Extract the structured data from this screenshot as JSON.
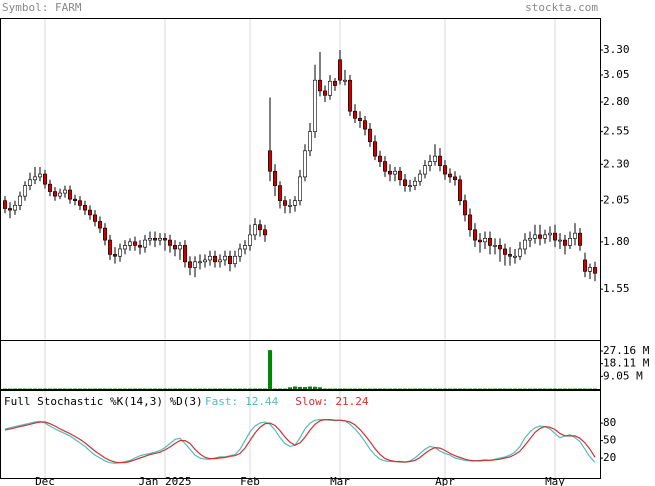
{
  "header": {
    "symbol": "Symbol: FARM",
    "source": "stockta.com"
  },
  "chart_data": [
    {
      "type": "candlestick",
      "log": true,
      "grid": true,
      "up_color": "#ffffff",
      "down_color": "#cc0000",
      "xlim": [
        -1,
        119
      ],
      "xticks": [
        {
          "value": 8,
          "label": "Dec"
        },
        {
          "value": 32,
          "label": "Jan 2025"
        },
        {
          "value": 49,
          "label": "Feb"
        },
        {
          "value": 67,
          "label": "Mar"
        },
        {
          "value": 88,
          "label": "Apr"
        },
        {
          "value": 110,
          "label": "May"
        }
      ],
      "ylim": [
        1.32,
        3.64
      ],
      "yticks": [
        {
          "value": 3.3,
          "label": "3.30"
        },
        3.05,
        {
          "value": 2.8,
          "label": "2.80"
        },
        2.55,
        {
          "value": 2.3,
          "label": "2.30"
        },
        2.05,
        {
          "value": 1.8,
          "label": "1.80"
        },
        1.55
      ],
      "open": [
        2.05,
        2.0,
        1.99,
        2.02,
        2.08,
        2.15,
        2.19,
        2.21,
        2.23,
        2.16,
        2.11,
        2.08,
        2.1,
        2.12,
        2.06,
        2.05,
        2.02,
        1.99,
        1.96,
        1.92,
        1.88,
        1.81,
        1.73,
        1.72,
        1.76,
        1.78,
        1.8,
        1.78,
        1.77,
        1.81,
        1.82,
        1.81,
        1.82,
        1.81,
        1.78,
        1.76,
        1.78,
        1.69,
        1.66,
        1.69,
        1.69,
        1.7,
        1.72,
        1.69,
        1.7,
        1.72,
        1.68,
        1.72,
        1.76,
        1.78,
        1.84,
        1.9,
        1.87,
        2.4,
        2.25,
        2.15,
        2.05,
        2.02,
        2.02,
        2.05,
        2.21,
        2.4,
        2.55,
        3.0,
        2.9,
        2.86,
        2.99,
        3.2,
        3.0,
        3.0,
        2.72,
        2.66,
        2.64,
        2.57,
        2.47,
        2.36,
        2.32,
        2.25,
        2.23,
        2.25,
        2.19,
        2.15,
        2.15,
        2.18,
        2.23,
        2.29,
        2.32,
        2.36,
        2.29,
        2.23,
        2.21,
        2.19,
        2.05,
        1.96,
        1.87,
        1.81,
        1.8,
        1.82,
        1.78,
        1.78,
        1.76,
        1.73,
        1.72,
        1.72,
        1.76,
        1.81,
        1.82,
        1.84,
        1.82,
        1.84,
        1.85,
        1.81,
        1.81,
        1.78,
        1.82,
        1.85,
        1.7,
        1.64,
        1.66
      ],
      "high": [
        2.08,
        2.04,
        2.05,
        2.11,
        2.18,
        2.24,
        2.28,
        2.28,
        2.26,
        2.19,
        2.14,
        2.13,
        2.15,
        2.15,
        2.09,
        2.08,
        2.05,
        2.02,
        1.99,
        1.95,
        1.91,
        1.84,
        1.77,
        1.79,
        1.81,
        1.82,
        1.83,
        1.81,
        1.84,
        1.86,
        1.86,
        1.85,
        1.85,
        1.84,
        1.81,
        1.8,
        1.81,
        1.72,
        1.72,
        1.73,
        1.73,
        1.75,
        1.75,
        1.73,
        1.75,
        1.75,
        1.75,
        1.79,
        1.81,
        1.9,
        1.94,
        1.93,
        1.9,
        2.84,
        2.3,
        2.18,
        2.08,
        2.06,
        2.08,
        2.26,
        2.45,
        2.62,
        3.15,
        3.28,
        2.95,
        3.05,
        3.02,
        3.3,
        3.1,
        3.05,
        2.78,
        2.72,
        2.68,
        2.62,
        2.52,
        2.4,
        2.36,
        2.3,
        2.28,
        2.28,
        2.23,
        2.19,
        2.21,
        2.26,
        2.33,
        2.37,
        2.45,
        2.42,
        2.33,
        2.27,
        2.25,
        2.22,
        2.09,
        2.0,
        1.91,
        1.85,
        1.86,
        1.86,
        1.82,
        1.82,
        1.79,
        1.77,
        1.76,
        1.8,
        1.85,
        1.86,
        1.9,
        1.9,
        1.87,
        1.89,
        1.9,
        1.85,
        1.84,
        1.86,
        1.91,
        1.88,
        1.74,
        1.68,
        1.69
      ],
      "low": [
        1.97,
        1.94,
        1.96,
        1.99,
        2.05,
        2.12,
        2.16,
        2.18,
        2.13,
        2.08,
        2.05,
        2.06,
        2.07,
        2.03,
        2.02,
        1.99,
        1.96,
        1.93,
        1.89,
        1.85,
        1.78,
        1.7,
        1.68,
        1.69,
        1.73,
        1.75,
        1.75,
        1.73,
        1.74,
        1.78,
        1.77,
        1.78,
        1.75,
        1.74,
        1.72,
        1.7,
        1.66,
        1.62,
        1.61,
        1.65,
        1.66,
        1.67,
        1.66,
        1.66,
        1.67,
        1.64,
        1.66,
        1.69,
        1.73,
        1.75,
        1.81,
        1.83,
        1.8,
        2.18,
        2.08,
        2.0,
        1.97,
        1.97,
        1.98,
        2.02,
        2.18,
        2.36,
        2.5,
        2.85,
        2.8,
        2.82,
        2.9,
        2.96,
        2.95,
        2.68,
        2.62,
        2.58,
        2.52,
        2.43,
        2.33,
        2.28,
        2.21,
        2.18,
        2.18,
        2.15,
        2.11,
        2.11,
        2.12,
        2.15,
        2.2,
        2.25,
        2.29,
        2.25,
        2.19,
        2.17,
        2.15,
        2.02,
        1.92,
        1.83,
        1.77,
        1.74,
        1.76,
        1.73,
        1.73,
        1.69,
        1.67,
        1.67,
        1.68,
        1.7,
        1.73,
        1.77,
        1.79,
        1.78,
        1.79,
        1.8,
        1.77,
        1.76,
        1.73,
        1.76,
        1.78,
        1.75,
        1.61,
        1.6,
        1.59
      ],
      "close": [
        2.0,
        1.99,
        2.02,
        2.08,
        2.15,
        2.19,
        2.21,
        2.23,
        2.16,
        2.11,
        2.08,
        2.1,
        2.12,
        2.06,
        2.05,
        2.02,
        1.99,
        1.96,
        1.92,
        1.88,
        1.81,
        1.73,
        1.72,
        1.76,
        1.78,
        1.8,
        1.78,
        1.77,
        1.81,
        1.82,
        1.81,
        1.82,
        1.81,
        1.78,
        1.76,
        1.78,
        1.69,
        1.66,
        1.69,
        1.69,
        1.7,
        1.72,
        1.69,
        1.7,
        1.72,
        1.68,
        1.72,
        1.76,
        1.78,
        1.84,
        1.9,
        1.87,
        1.84,
        2.25,
        2.15,
        2.05,
        2.02,
        2.02,
        2.05,
        2.21,
        2.4,
        2.55,
        3.0,
        2.9,
        2.86,
        2.99,
        2.95,
        3.0,
        3.0,
        2.72,
        2.66,
        2.64,
        2.57,
        2.47,
        2.36,
        2.32,
        2.25,
        2.23,
        2.25,
        2.19,
        2.15,
        2.15,
        2.18,
        2.23,
        2.29,
        2.32,
        2.36,
        2.29,
        2.23,
        2.21,
        2.19,
        2.05,
        1.96,
        1.87,
        1.81,
        1.8,
        1.82,
        1.78,
        1.78,
        1.76,
        1.73,
        1.72,
        1.72,
        1.76,
        1.81,
        1.82,
        1.84,
        1.82,
        1.84,
        1.85,
        1.81,
        1.81,
        1.78,
        1.82,
        1.85,
        1.78,
        1.64,
        1.66,
        1.63
      ]
    },
    {
      "type": "bar",
      "color": "#008800",
      "ylim": [
        0,
        34.3
      ],
      "yticks": [
        {
          "value": 27.16,
          "label": "27.16 M"
        },
        {
          "value": 18.11,
          "label": "18.11 M"
        },
        {
          "value": 9.05,
          "label": "9.05 M"
        }
      ],
      "values": [
        0.3,
        0.3,
        0.3,
        0.3,
        0.3,
        0.3,
        0.3,
        0.3,
        0.3,
        0.3,
        0.3,
        0.3,
        0.3,
        0.3,
        0.3,
        0.3,
        0.3,
        0.3,
        0.3,
        0.3,
        0.3,
        0.3,
        0.3,
        0.3,
        0.3,
        0.3,
        0.3,
        0.3,
        0.3,
        0.3,
        0.3,
        0.3,
        0.3,
        0.3,
        0.3,
        0.3,
        0.3,
        0.3,
        0.3,
        0.3,
        0.3,
        0.3,
        0.3,
        0.3,
        0.3,
        0.3,
        0.3,
        0.3,
        0.3,
        0.3,
        0.3,
        0.3,
        0.3,
        27.8,
        0.3,
        0.3,
        0.3,
        1.2,
        1.8,
        1.5,
        1.4,
        1.8,
        1.6,
        1.2,
        0.3,
        0.3,
        0.3,
        0.3,
        0.3,
        0.3,
        0.3,
        0.3,
        0.3,
        0.3,
        0.3,
        0.3,
        0.3,
        0.3,
        0.3,
        0.3,
        0.3,
        0.3,
        0.3,
        0.3,
        0.3,
        0.3,
        0.3,
        0.3,
        0.3,
        0.3,
        0.3,
        0.3,
        0.3,
        0.3,
        0.3,
        0.3,
        0.3,
        0.3,
        0.3,
        0.3,
        0.3,
        0.3,
        0.3,
        0.3,
        0.3,
        0.3,
        0.3,
        0.3,
        0.3,
        0.3,
        0.3,
        0.3,
        0.3,
        0.3,
        0.3,
        0.3,
        0.3,
        0.3,
        0.3
      ]
    },
    {
      "type": "line",
      "title": "Full Stochastic %K(14,3) %D(3)",
      "ylim": [
        -14.3,
        135.2
      ],
      "yticks": [
        80,
        50,
        20
      ],
      "series": [
        {
          "name": "Fast:",
          "color": "#55bbbb",
          "values": [
            70,
            72,
            74,
            76,
            78,
            80,
            82,
            83,
            80,
            75,
            70,
            66,
            62,
            58,
            52,
            46,
            40,
            32,
            25,
            20,
            15,
            12,
            11,
            12,
            14,
            16,
            20,
            24,
            26,
            28,
            30,
            33,
            38,
            45,
            52,
            54,
            45,
            35,
            25,
            20,
            18,
            18,
            20,
            22,
            22,
            24,
            26,
            35,
            50,
            65,
            75,
            80,
            82,
            78,
            68,
            55,
            45,
            40,
            42,
            55,
            70,
            80,
            85,
            86,
            86,
            85,
            84,
            85,
            84,
            78,
            70,
            60,
            48,
            35,
            25,
            18,
            15,
            14,
            14,
            13,
            13,
            15,
            20,
            28,
            35,
            40,
            38,
            32,
            28,
            25,
            20,
            18,
            16,
            15,
            15,
            16,
            17,
            16,
            18,
            20,
            22,
            25,
            30,
            40,
            55,
            65,
            72,
            75,
            74,
            70,
            62,
            55,
            58,
            60,
            55,
            48,
            35,
            22,
            12.44
          ]
        },
        {
          "name": "Slow:",
          "color": "#cc3333",
          "values": [
            68,
            70,
            72,
            74,
            76,
            78,
            80,
            82,
            82,
            79,
            75,
            70,
            66,
            62,
            57,
            52,
            46,
            39,
            32,
            26,
            20,
            16,
            13,
            12,
            12,
            14,
            17,
            20,
            23,
            26,
            28,
            30,
            34,
            39,
            45,
            50,
            50,
            45,
            35,
            27,
            21,
            19,
            19,
            20,
            21,
            23,
            24,
            28,
            37,
            50,
            63,
            73,
            79,
            80,
            76,
            67,
            56,
            47,
            42,
            46,
            56,
            68,
            78,
            84,
            86,
            86,
            85,
            85,
            84,
            82,
            77,
            69,
            59,
            48,
            36,
            26,
            19,
            16,
            14,
            14,
            13,
            14,
            16,
            21,
            28,
            34,
            38,
            37,
            33,
            28,
            24,
            21,
            18,
            16,
            15,
            15,
            16,
            16,
            17,
            18,
            20,
            22,
            26,
            32,
            42,
            53,
            64,
            71,
            74,
            73,
            69,
            62,
            58,
            58,
            58,
            54,
            46,
            35,
            21.24
          ]
        }
      ]
    }
  ]
}
